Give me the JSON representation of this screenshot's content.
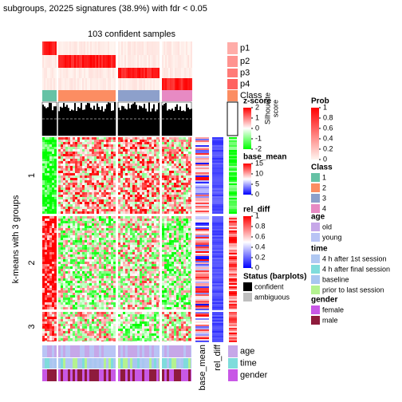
{
  "chart_data": {
    "type": "heatmap",
    "title": "subgroups, 20225 signatures (38.9%) with fdr < 0.05",
    "subtitle": "103 confident samples",
    "row_title": "k-means with 3 groups",
    "row_groups": [
      "1",
      "2",
      "3"
    ],
    "top_annotations": [
      "p1",
      "p2",
      "p3",
      "p4",
      "Class"
    ],
    "silhouette_label": [
      "Silhouette",
      "score"
    ],
    "side_columns": [
      "base_mean",
      "rel_diff"
    ],
    "bottom_annotations": [
      "age",
      "time",
      "gender"
    ],
    "legends": [
      {
        "title": "z-score",
        "colors": [
          "#ff0000",
          "#ffffff",
          "#00ff00"
        ],
        "ticks": [
          2,
          1,
          0,
          -1,
          -2
        ]
      },
      {
        "title": "base_mean",
        "colors": [
          "#ff0000",
          "#ffffff",
          "#0000ff"
        ],
        "ticks": [
          15,
          10,
          5,
          0
        ]
      },
      {
        "title": "rel_diff",
        "colors": [
          "#ff0000",
          "#ffffff",
          "#0000ff"
        ],
        "ticks": [
          1,
          0.8,
          0.6,
          0.4,
          0.2,
          0
        ]
      },
      {
        "title": "Status (barplots)",
        "items": [
          {
            "label": "confident",
            "color": "#000000"
          },
          {
            "label": "ambiguous",
            "color": "#bebebe"
          }
        ]
      },
      {
        "title": "Prob",
        "colors": [
          "#ff0000",
          "#fff5f0"
        ],
        "ticks": [
          1,
          0.8,
          0.6,
          0.4,
          0.2,
          0
        ]
      },
      {
        "title": "Class",
        "items": [
          {
            "label": "1",
            "color": "#66c2a5"
          },
          {
            "label": "2",
            "color": "#fc8d62"
          },
          {
            "label": "3",
            "color": "#8da0cb"
          },
          {
            "label": "4",
            "color": "#e78ac3"
          }
        ]
      },
      {
        "title": "age",
        "items": [
          {
            "label": "old",
            "color": "#c6a7e8"
          },
          {
            "label": "young",
            "color": "#b9c4f5"
          }
        ]
      },
      {
        "title": "time",
        "items": [
          {
            "label": "4 h after 1st session",
            "color": "#b0c8f2"
          },
          {
            "label": "4 h after final session",
            "color": "#7fdcdc"
          },
          {
            "label": "baseline",
            "color": "#a8c6f0"
          },
          {
            "label": "prior to last session",
            "color": "#b4f290"
          }
        ]
      },
      {
        "title": "gender",
        "items": [
          {
            "label": "female",
            "color": "#c858e6"
          },
          {
            "label": "male",
            "color": "#8e1b3c"
          }
        ]
      }
    ]
  }
}
